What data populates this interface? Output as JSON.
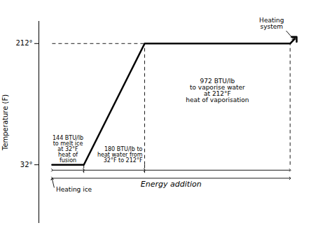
{
  "chart_data": {
    "type": "line",
    "x": [
      0,
      1.2,
      3.5,
      9.0
    ],
    "values": [
      32,
      32,
      212,
      212
    ],
    "color": "#000000",
    "ylabel": "Temperature (F)",
    "xlim": [
      -0.5,
      10.2
    ],
    "ylim": [
      -55,
      245
    ],
    "yticks": [
      {
        "value": 32,
        "label": "32°"
      },
      {
        "value": 212,
        "label": "212°"
      }
    ],
    "tick_labels": "y",
    "grid": false,
    "annotations": [
      "144 BTU/lb\nto melt ice\nat 32°F\nheat of\nfusion",
      "180 BTU/lb to\nheat water from\n32°F to 212°F",
      "972 BTU/lb\nto vaporise water\nat 212°F\nheat of vaporisation",
      "Energy addition",
      "Heating ice",
      "Heating\nsystem"
    ]
  }
}
